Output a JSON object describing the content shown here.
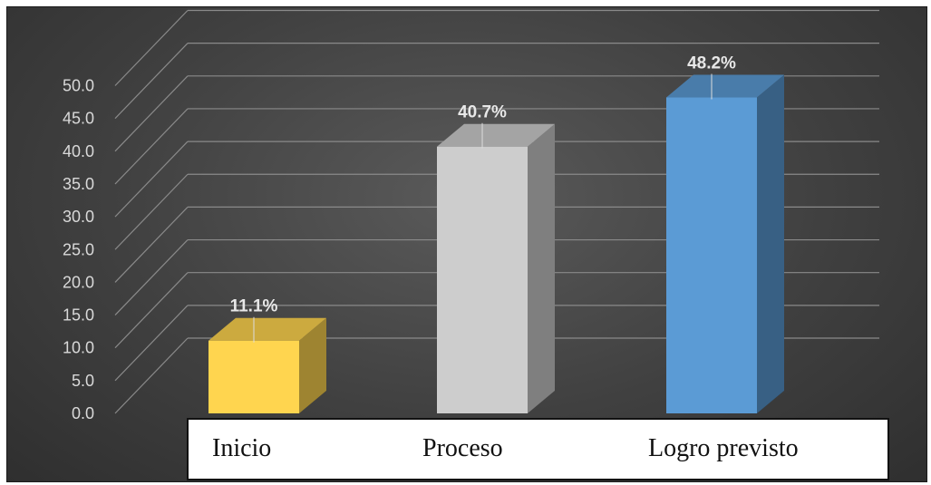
{
  "chart_data": {
    "type": "bar",
    "categories": [
      "Inicio",
      "Proceso",
      "Logro previsto"
    ],
    "values": [
      11.1,
      40.7,
      48.2
    ],
    "data_labels": [
      "11.1%",
      "40.7%",
      "48.2%"
    ],
    "ylim": [
      0,
      50
    ],
    "y_ticks": [
      "0.0",
      "5.0",
      "10.0",
      "15.0",
      "20.0",
      "25.0",
      "30.0",
      "35.0",
      "40.0",
      "45.0",
      "50.0"
    ],
    "grid": true,
    "bar_colors": [
      "#FFD54F",
      "#CDCDCD",
      "#5B9BD5"
    ],
    "background": "#404040",
    "style": "3d-column"
  }
}
